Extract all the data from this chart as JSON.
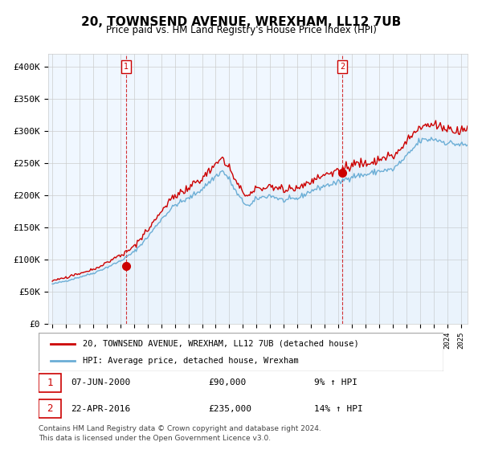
{
  "title": "20, TOWNSEND AVENUE, WREXHAM, LL12 7UB",
  "subtitle": "Price paid vs. HM Land Registry's House Price Index (HPI)",
  "legend1": "20, TOWNSEND AVENUE, WREXHAM, LL12 7UB (detached house)",
  "legend2": "HPI: Average price, detached house, Wrexham",
  "marker1_date": "07-JUN-2000",
  "marker1_price": 90000,
  "marker1_hpi_pct": "9%",
  "marker2_date": "22-APR-2016",
  "marker2_price": 235000,
  "marker2_hpi_pct": "14%",
  "marker1_x": 2000.44,
  "marker2_x": 2016.31,
  "ylabel_values": [
    "£0",
    "£50K",
    "£100K",
    "£150K",
    "£200K",
    "£250K",
    "£300K",
    "£350K",
    "£400K"
  ],
  "ylim": [
    0,
    420000
  ],
  "xlim_start": 1995,
  "xlim_end": 2025.5,
  "footnote1": "Contains HM Land Registry data © Crown copyright and database right 2024.",
  "footnote2": "This data is licensed under the Open Government Licence v3.0.",
  "hpi_color": "#6baed6",
  "price_color": "#cc0000",
  "marker_color": "#cc0000",
  "bg_between_color": "#dce9f5",
  "vline_color": "#cc0000",
  "grid_color": "#cccccc",
  "annotation_box_color": "#cc0000"
}
